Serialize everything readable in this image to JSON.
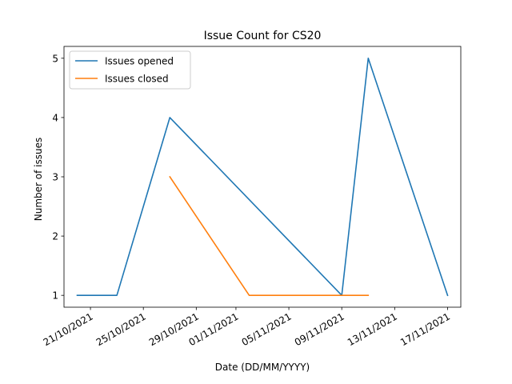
{
  "chart_data": {
    "type": "line",
    "title": "Issue Count for CS20",
    "xlabel": "Date (DD/MM/YYYY)",
    "ylabel": "Number of issues",
    "x_type": "date",
    "x_tick_labels": [
      "21/10/2021",
      "25/10/2021",
      "29/10/2021",
      "01/11/2021",
      "05/11/2021",
      "09/11/2021",
      "13/11/2021",
      "17/11/2021"
    ],
    "x_ticks": [
      "2021-10-21",
      "2021-10-25",
      "2021-10-29",
      "2021-11-01",
      "2021-11-05",
      "2021-11-09",
      "2021-11-13",
      "2021-11-17"
    ],
    "xlim": [
      "2021-10-19",
      "2021-11-18"
    ],
    "y_ticks": [
      1,
      2,
      3,
      4,
      5
    ],
    "ylim": [
      0.8,
      5.2
    ],
    "grid": false,
    "legend_position": "top-left",
    "series": [
      {
        "name": "Issues opened",
        "color": "#1f77b4",
        "points": [
          {
            "x": "2021-10-20",
            "y": 1
          },
          {
            "x": "2021-10-23",
            "y": 1
          },
          {
            "x": "2021-10-27",
            "y": 4
          },
          {
            "x": "2021-11-09",
            "y": 1
          },
          {
            "x": "2021-11-11",
            "y": 5
          },
          {
            "x": "2021-11-17",
            "y": 1
          }
        ]
      },
      {
        "name": "Issues closed",
        "color": "#ff7f0e",
        "points": [
          {
            "x": "2021-10-27",
            "y": 3
          },
          {
            "x": "2021-11-02",
            "y": 1
          },
          {
            "x": "2021-11-11",
            "y": 1
          }
        ]
      }
    ]
  }
}
